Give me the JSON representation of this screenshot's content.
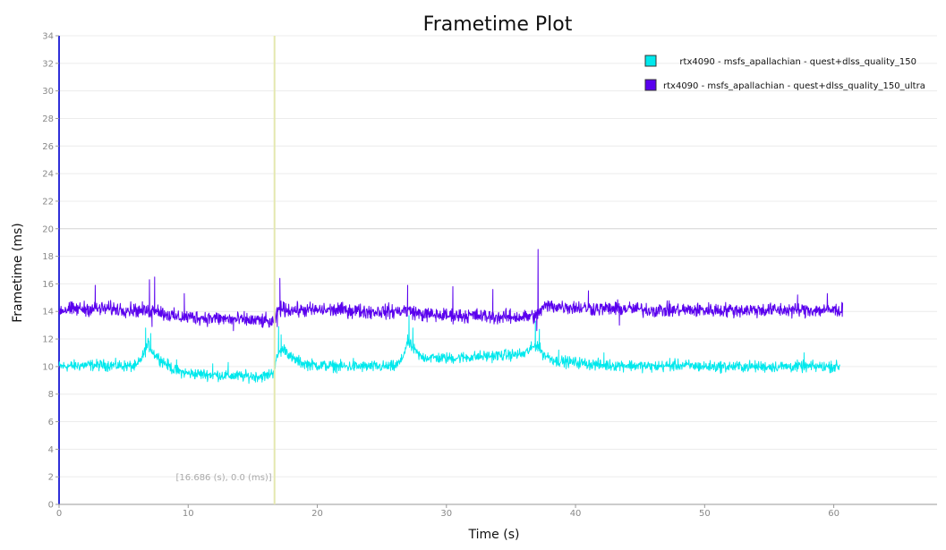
{
  "chart_data": {
    "type": "line",
    "title": "Frametime Plot",
    "xlabel": "Time (s)",
    "ylabel": "Frametime (ms)",
    "xlim": [
      0,
      68
    ],
    "ylim": [
      0,
      34
    ],
    "xticks": [
      0,
      10,
      20,
      30,
      40,
      50,
      60
    ],
    "yticks": [
      0,
      2,
      4,
      6,
      8,
      10,
      12,
      14,
      16,
      18,
      20,
      22,
      24,
      26,
      28,
      30,
      32,
      34
    ],
    "grid": true,
    "legend_position": "top-right",
    "cursor": {
      "x": 16.686,
      "label": "[16.686 (s), 0.0 (ms)]",
      "color": "#e4e8b0"
    },
    "series": [
      {
        "name": "rtx4090 - msfs_apallachian - quest+dlss_quality_150",
        "color": "#00e8ec",
        "noise": 0.25,
        "points": [
          [
            0,
            10.0
          ],
          [
            2,
            10.1
          ],
          [
            4,
            10.1
          ],
          [
            6,
            10.0
          ],
          [
            6.5,
            10.8
          ],
          [
            6.9,
            11.6
          ],
          [
            7.3,
            11.0
          ],
          [
            8,
            10.4
          ],
          [
            9,
            9.7
          ],
          [
            10,
            9.5
          ],
          [
            12,
            9.4
          ],
          [
            14,
            9.3
          ],
          [
            16,
            9.3
          ],
          [
            16.6,
            9.6
          ],
          [
            17.0,
            11.0
          ],
          [
            17.5,
            11.3
          ],
          [
            18,
            10.6
          ],
          [
            19,
            10.2
          ],
          [
            20,
            10.1
          ],
          [
            22,
            10.0
          ],
          [
            24,
            10.0
          ],
          [
            26,
            10.0
          ],
          [
            26.5,
            10.4
          ],
          [
            27.0,
            11.8
          ],
          [
            27.5,
            11.2
          ],
          [
            28,
            10.7
          ],
          [
            30,
            10.6
          ],
          [
            32,
            10.7
          ],
          [
            34,
            10.8
          ],
          [
            36,
            10.9
          ],
          [
            37.0,
            11.6
          ],
          [
            37.5,
            10.9
          ],
          [
            38.5,
            10.4
          ],
          [
            40,
            10.3
          ],
          [
            42,
            10.1
          ],
          [
            44,
            10.1
          ],
          [
            46,
            10.0
          ],
          [
            48,
            10.1
          ],
          [
            50,
            10.0
          ],
          [
            52,
            10.0
          ],
          [
            54,
            10.0
          ],
          [
            56,
            10.0
          ],
          [
            58,
            10.0
          ],
          [
            60,
            10.0
          ],
          [
            60.5,
            10.0
          ]
        ],
        "spikes": [
          [
            6.7,
            12.8
          ],
          [
            7.1,
            12.4
          ],
          [
            17.0,
            12.9
          ],
          [
            17.2,
            12.3
          ],
          [
            27.1,
            13.7
          ],
          [
            27.4,
            12.8
          ],
          [
            36.9,
            13.3
          ],
          [
            37.2,
            12.7
          ],
          [
            38.7,
            11.2
          ],
          [
            42.2,
            11.0
          ],
          [
            57.7,
            11.0
          ],
          [
            59.8,
            10.4
          ],
          [
            9.1,
            10.5
          ],
          [
            11.9,
            10.2
          ],
          [
            13.1,
            10.3
          ],
          [
            22.8,
            10.6
          ],
          [
            47.3,
            10.6
          ]
        ]
      },
      {
        "name": "rtx4090 - msfs_apallachian - quest+dlss_quality_150_ultra",
        "color": "#5a00ee",
        "noise": 0.32,
        "points": [
          [
            0,
            14.1
          ],
          [
            2,
            14.2
          ],
          [
            4,
            14.2
          ],
          [
            6,
            14.1
          ],
          [
            7,
            14.0
          ],
          [
            7.5,
            14.2
          ],
          [
            8,
            13.9
          ],
          [
            9,
            13.6
          ],
          [
            10,
            13.6
          ],
          [
            12,
            13.5
          ],
          [
            14,
            13.4
          ],
          [
            16,
            13.3
          ],
          [
            16.6,
            13.1
          ],
          [
            17.0,
            14.2
          ],
          [
            18,
            14.1
          ],
          [
            20,
            14.1
          ],
          [
            22,
            14.1
          ],
          [
            24,
            14.0
          ],
          [
            26,
            14.0
          ],
          [
            27,
            14.1
          ],
          [
            28,
            13.8
          ],
          [
            30,
            13.7
          ],
          [
            32,
            13.7
          ],
          [
            34,
            13.6
          ],
          [
            36,
            13.6
          ],
          [
            37,
            13.7
          ],
          [
            37.5,
            14.3
          ],
          [
            38,
            14.4
          ],
          [
            40,
            14.3
          ],
          [
            42,
            14.2
          ],
          [
            44,
            14.2
          ],
          [
            46,
            14.1
          ],
          [
            48,
            14.1
          ],
          [
            50,
            14.1
          ],
          [
            52,
            14.1
          ],
          [
            54,
            14.1
          ],
          [
            56,
            14.1
          ],
          [
            58,
            14.1
          ],
          [
            60,
            14.1
          ],
          [
            60.7,
            14.1
          ]
        ],
        "spikes": [
          [
            7.0,
            16.3
          ],
          [
            7.4,
            16.5
          ],
          [
            7.2,
            12.9
          ],
          [
            2.8,
            15.9
          ],
          [
            9.7,
            15.3
          ],
          [
            17.1,
            16.4
          ],
          [
            16.9,
            12.9
          ],
          [
            27.0,
            15.9
          ],
          [
            30.5,
            15.8
          ],
          [
            33.6,
            15.6
          ],
          [
            37.1,
            18.5
          ],
          [
            37.0,
            12.6
          ],
          [
            41.0,
            15.5
          ],
          [
            59.5,
            15.3
          ],
          [
            43.4,
            13.0
          ],
          [
            13.5,
            12.6
          ],
          [
            57.2,
            15.2
          ]
        ]
      }
    ]
  }
}
